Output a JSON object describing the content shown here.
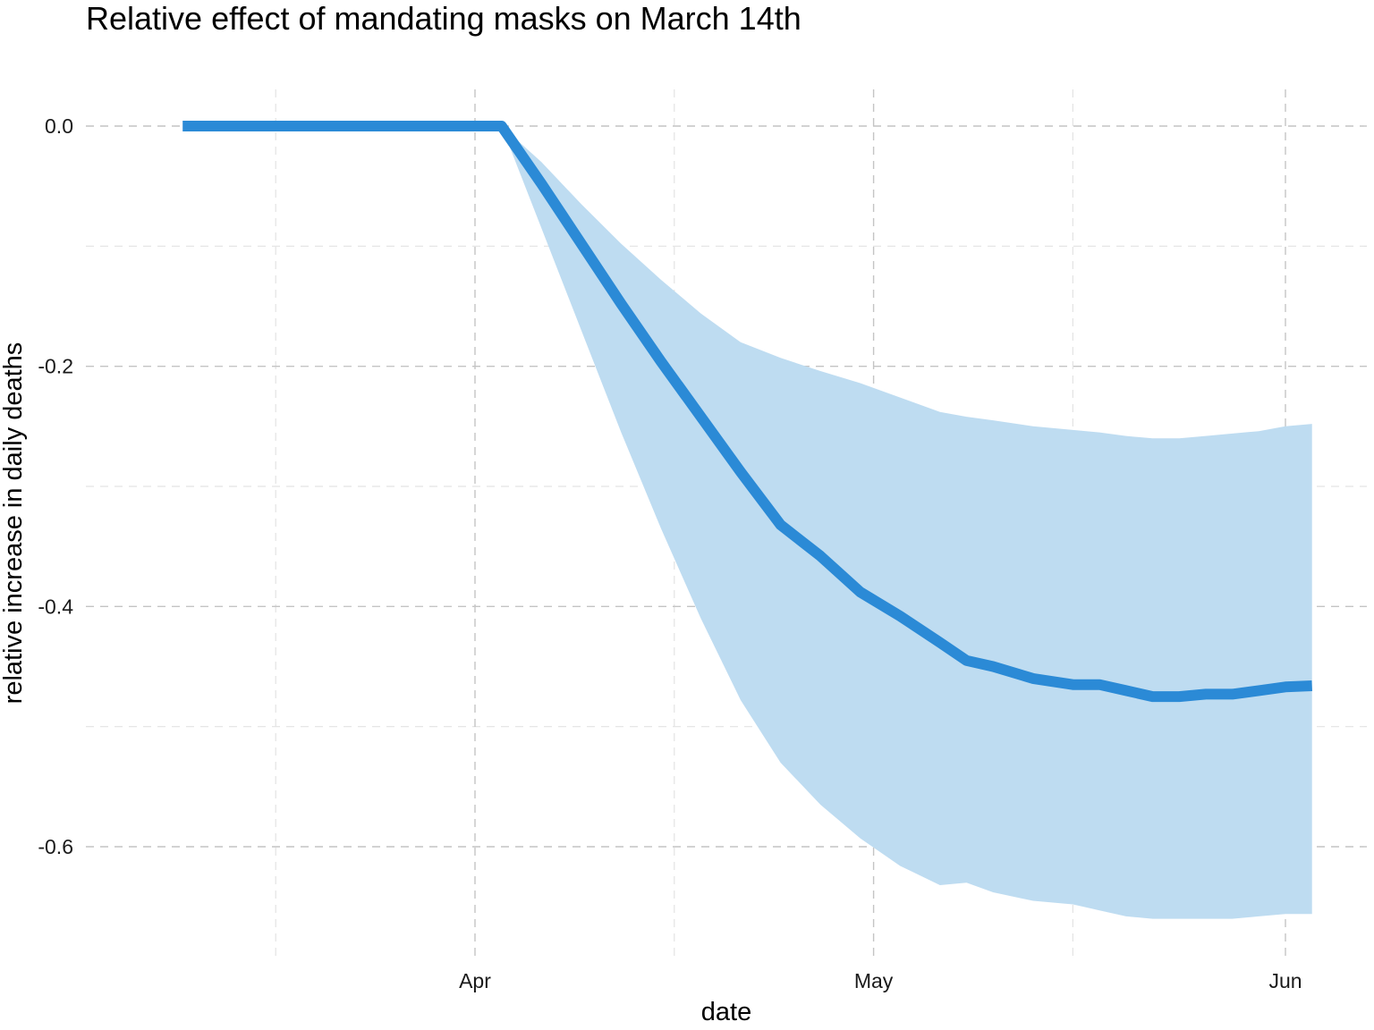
{
  "chart_data": {
    "type": "line",
    "title": "Relative effect of mandating masks on March 14th",
    "xlabel": "date",
    "ylabel": "relative increase in daily deaths",
    "x_ticks": [
      {
        "date": "2020-04-01",
        "label": "Apr"
      },
      {
        "date": "2020-05-01",
        "label": "May"
      },
      {
        "date": "2020-06-01",
        "label": "Jun"
      }
    ],
    "x_minor_dates": [
      "2020-03-17",
      "2020-04-16",
      "2020-05-16"
    ],
    "xlim": [
      "2020-03-07",
      "2020-06-03"
    ],
    "y_ticks": [
      0.0,
      -0.2,
      -0.4,
      -0.6
    ],
    "y_tick_labels": [
      "0.0",
      "-0.2",
      "-0.4",
      "-0.6"
    ],
    "y_minor": [
      -0.1,
      -0.3,
      -0.5
    ],
    "ylim": [
      -0.7,
      0.03
    ],
    "grid": true,
    "colors": {
      "line": "#2B8AD6",
      "band": "#BEDCF1",
      "grid_major": "#C4C4C4",
      "grid_minor": "#E3E3E3"
    },
    "series": [
      {
        "x": [
          "2020-03-10",
          "2020-03-15",
          "2020-03-20",
          "2020-03-25",
          "2020-03-30",
          "2020-04-03",
          "2020-04-06",
          "2020-04-09",
          "2020-04-12",
          "2020-04-15",
          "2020-04-18",
          "2020-04-21",
          "2020-04-24",
          "2020-04-27",
          "2020-04-30",
          "2020-05-03",
          "2020-05-06",
          "2020-05-08",
          "2020-05-10",
          "2020-05-13",
          "2020-05-16",
          "2020-05-18",
          "2020-05-20",
          "2020-05-22",
          "2020-05-24",
          "2020-05-26",
          "2020-05-28",
          "2020-05-30",
          "2020-06-01",
          "2020-06-03"
        ],
        "values": [
          0.0,
          0.0,
          0.0,
          0.0,
          0.0,
          0.0,
          -0.048,
          -0.098,
          -0.148,
          -0.196,
          -0.242,
          -0.288,
          -0.332,
          -0.358,
          -0.388,
          -0.408,
          -0.43,
          -0.445,
          -0.45,
          -0.46,
          -0.465,
          -0.465,
          -0.47,
          -0.475,
          -0.475,
          -0.473,
          -0.473,
          -0.47,
          -0.467,
          -0.466
        ],
        "lower": [
          0.0,
          0.0,
          0.0,
          0.0,
          0.0,
          0.0,
          -0.085,
          -0.17,
          -0.255,
          -0.335,
          -0.41,
          -0.478,
          -0.53,
          -0.565,
          -0.593,
          -0.616,
          -0.632,
          -0.63,
          -0.638,
          -0.645,
          -0.648,
          -0.653,
          -0.658,
          -0.66,
          -0.66,
          -0.66,
          -0.66,
          -0.658,
          -0.656,
          -0.656
        ],
        "upper": [
          0.0,
          0.0,
          0.0,
          0.0,
          0.0,
          0.0,
          -0.03,
          -0.065,
          -0.098,
          -0.128,
          -0.156,
          -0.18,
          -0.193,
          -0.204,
          -0.214,
          -0.226,
          -0.238,
          -0.242,
          -0.245,
          -0.25,
          -0.253,
          -0.255,
          -0.258,
          -0.26,
          -0.26,
          -0.258,
          -0.256,
          -0.254,
          -0.25,
          -0.248
        ]
      }
    ]
  }
}
